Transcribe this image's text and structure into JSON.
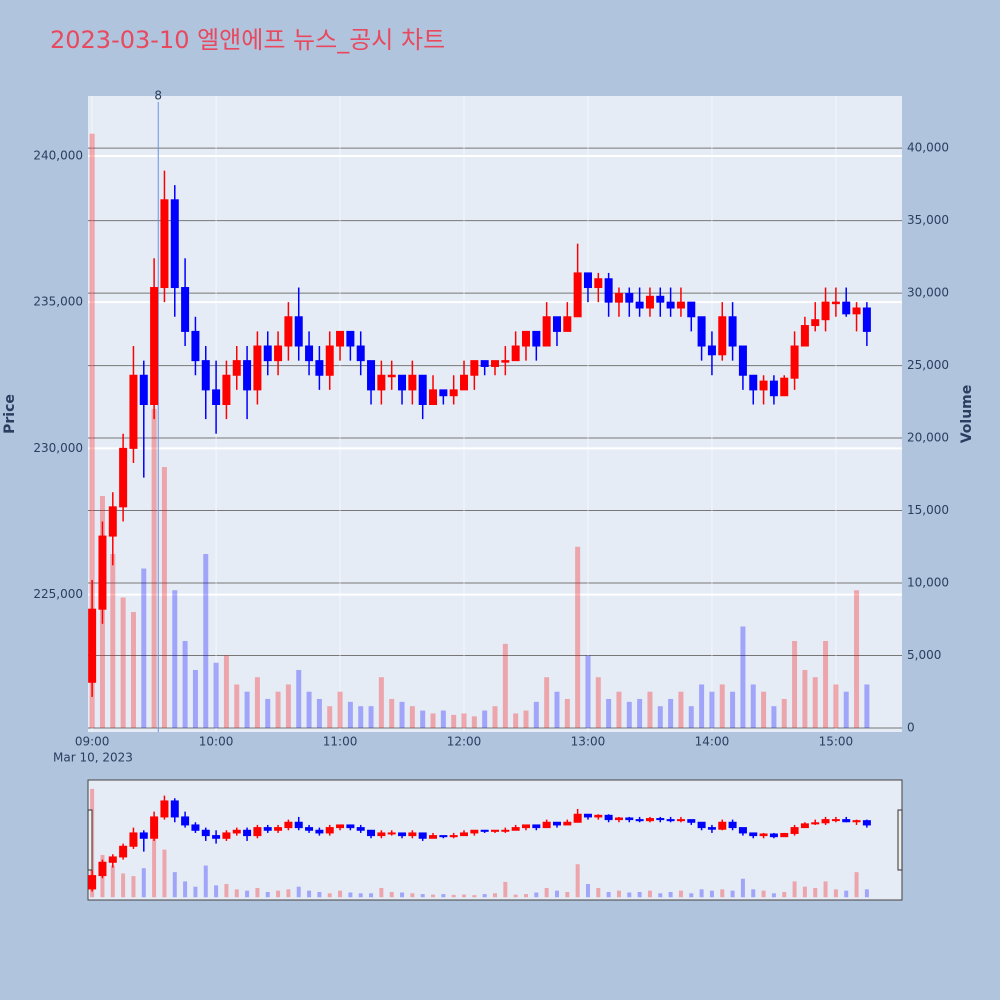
{
  "chart_data": {
    "type": "candlestick",
    "title": "2023-03-10 엘앤에프 뉴스_공시 차트",
    "title_color": "#e8495e",
    "ylabel": "Price",
    "y2label": "Volume",
    "x_date_label": "Mar 10, 2023",
    "increasing_color": "#ff0000",
    "decreasing_color": "#0000ff",
    "grid": true,
    "y2grid": true,
    "x": [
      "09:00",
      "09:05",
      "09:10",
      "09:15",
      "09:20",
      "09:25",
      "09:30",
      "09:35",
      "09:40",
      "09:45",
      "09:50",
      "09:55",
      "10:00",
      "10:05",
      "10:10",
      "10:15",
      "10:20",
      "10:25",
      "10:30",
      "10:35",
      "10:40",
      "10:45",
      "10:50",
      "10:55",
      "11:00",
      "11:05",
      "11:10",
      "11:15",
      "11:20",
      "11:25",
      "11:30",
      "11:35",
      "11:40",
      "11:45",
      "11:50",
      "11:55",
      "12:00",
      "12:05",
      "12:10",
      "12:15",
      "12:20",
      "12:25",
      "12:30",
      "12:35",
      "12:40",
      "12:45",
      "12:50",
      "12:55",
      "13:00",
      "13:05",
      "13:10",
      "13:15",
      "13:20",
      "13:25",
      "13:30",
      "13:35",
      "13:40",
      "13:45",
      "13:50",
      "13:55",
      "14:00",
      "14:05",
      "14:10",
      "14:15",
      "14:20",
      "14:25",
      "14:30",
      "14:35",
      "14:40",
      "14:45",
      "14:50",
      "14:55",
      "15:00",
      "15:05",
      "15:10",
      "15:15"
    ],
    "open": [
      222000,
      224500,
      227000,
      228000,
      230000,
      232500,
      231500,
      235500,
      238500,
      235500,
      234000,
      233000,
      232000,
      231500,
      232500,
      233000,
      232000,
      233500,
      233000,
      233500,
      234500,
      233500,
      233000,
      232500,
      233500,
      234000,
      233500,
      233000,
      232000,
      232500,
      232500,
      232000,
      232500,
      231500,
      232000,
      231800,
      232000,
      232500,
      233000,
      232800,
      233000,
      233000,
      233500,
      234000,
      233500,
      234500,
      234000,
      234500,
      236000,
      235500,
      235800,
      235000,
      235300,
      235000,
      234800,
      235200,
      235000,
      234800,
      235000,
      234500,
      233500,
      233200,
      234500,
      233500,
      232500,
      232000,
      232300,
      231800,
      232400,
      233500,
      234200,
      234400,
      235000,
      235000,
      234600,
      234800
    ],
    "high": [
      225500,
      227500,
      228500,
      230500,
      233500,
      233000,
      236500,
      239500,
      239000,
      236500,
      234500,
      233500,
      233000,
      233000,
      233500,
      233500,
      234000,
      234000,
      234000,
      235000,
      235500,
      234000,
      233500,
      234000,
      234000,
      234000,
      234000,
      233000,
      233000,
      233000,
      232500,
      233000,
      232500,
      232500,
      232000,
      232500,
      233000,
      233000,
      233000,
      233000,
      233500,
      234000,
      234000,
      234000,
      235000,
      234500,
      235000,
      237000,
      236000,
      236000,
      236000,
      235500,
      235500,
      235500,
      235500,
      235500,
      235500,
      235500,
      235000,
      234500,
      234000,
      235000,
      235000,
      233500,
      232500,
      232500,
      232500,
      232500,
      234000,
      234500,
      235000,
      235500,
      235500,
      235500,
      235000,
      235000
    ],
    "low": [
      221500,
      224000,
      226000,
      227500,
      229500,
      229000,
      231000,
      235000,
      234500,
      233500,
      232500,
      231000,
      230500,
      231000,
      232000,
      231000,
      231500,
      232500,
      232500,
      233000,
      233000,
      232500,
      232000,
      232000,
      233000,
      233000,
      232500,
      231500,
      231500,
      232000,
      231500,
      231500,
      231000,
      231500,
      231500,
      231500,
      232000,
      232000,
      232500,
      232500,
      232500,
      233000,
      233000,
      233000,
      233500,
      233500,
      234000,
      234500,
      235000,
      235000,
      234500,
      234500,
      234500,
      234500,
      234500,
      234500,
      234500,
      234500,
      234000,
      233000,
      232500,
      233000,
      233000,
      232000,
      231500,
      231500,
      231500,
      231800,
      232000,
      233500,
      234000,
      234000,
      234500,
      234500,
      234000,
      233500
    ],
    "close": [
      224500,
      227000,
      228000,
      230000,
      232500,
      231500,
      235500,
      238500,
      235500,
      234000,
      233000,
      232000,
      231500,
      232500,
      233000,
      232000,
      233500,
      233000,
      233500,
      234500,
      233500,
      233000,
      232500,
      233500,
      234000,
      233500,
      233000,
      232000,
      232500,
      232500,
      232000,
      232500,
      231500,
      232000,
      231800,
      232000,
      232500,
      233000,
      232800,
      233000,
      233000,
      233500,
      234000,
      233500,
      234500,
      234000,
      234500,
      236000,
      235500,
      235800,
      235000,
      235300,
      235000,
      234800,
      235200,
      235000,
      234800,
      235000,
      234500,
      233500,
      233200,
      234500,
      233500,
      232500,
      232000,
      232300,
      231800,
      232400,
      233500,
      234200,
      234400,
      235000,
      235000,
      234600,
      234800,
      234000
    ],
    "volume": [
      41000,
      16000,
      12000,
      9000,
      8000,
      11000,
      22000,
      18000,
      9500,
      6000,
      4000,
      12000,
      4500,
      5000,
      3000,
      2500,
      3500,
      2000,
      2500,
      3000,
      4000,
      2500,
      2000,
      1500,
      2500,
      1800,
      1500,
      1500,
      3500,
      2000,
      1800,
      1500,
      1200,
      1000,
      1200,
      900,
      1000,
      800,
      1200,
      1500,
      5800,
      1000,
      1200,
      1800,
      3500,
      2500,
      2000,
      12500,
      5000,
      3500,
      2000,
      2500,
      1800,
      2000,
      2500,
      1500,
      2000,
      2500,
      1500,
      3000,
      2500,
      3000,
      2500,
      7000,
      3000,
      2500,
      1500,
      2000,
      6000,
      4000,
      3500,
      6000,
      3000,
      2500,
      9500,
      3000
    ],
    "xlim": [
      "08:58",
      "15:32"
    ],
    "xticks": [
      "09:00",
      "10:00",
      "11:00",
      "12:00",
      "13:00",
      "14:00",
      "15:00"
    ],
    "ylim": [
      220300,
      242050
    ],
    "yticks": [
      {
        "value": 225000,
        "label": "225,000"
      },
      {
        "value": 230000,
        "label": "230,000"
      },
      {
        "value": 235000,
        "label": "235,000"
      },
      {
        "value": 240000,
        "label": "240,000"
      }
    ],
    "y2lim": [
      -280,
      43600
    ],
    "y2ticks": [
      0,
      {
        "value": 5000,
        "label": "5,000"
      },
      {
        "value": 10000,
        "label": "10,000"
      },
      {
        "value": 15000,
        "label": "15,000"
      },
      {
        "value": 20000,
        "label": "20,000"
      },
      {
        "value": 25000,
        "label": "25,000"
      },
      {
        "value": 30000,
        "label": "30,000"
      },
      {
        "value": 35000,
        "label": "35,000"
      },
      {
        "value": 40000,
        "label": "40,000"
      }
    ],
    "annotations": [
      {
        "x": "09:32",
        "text": "8"
      }
    ]
  }
}
